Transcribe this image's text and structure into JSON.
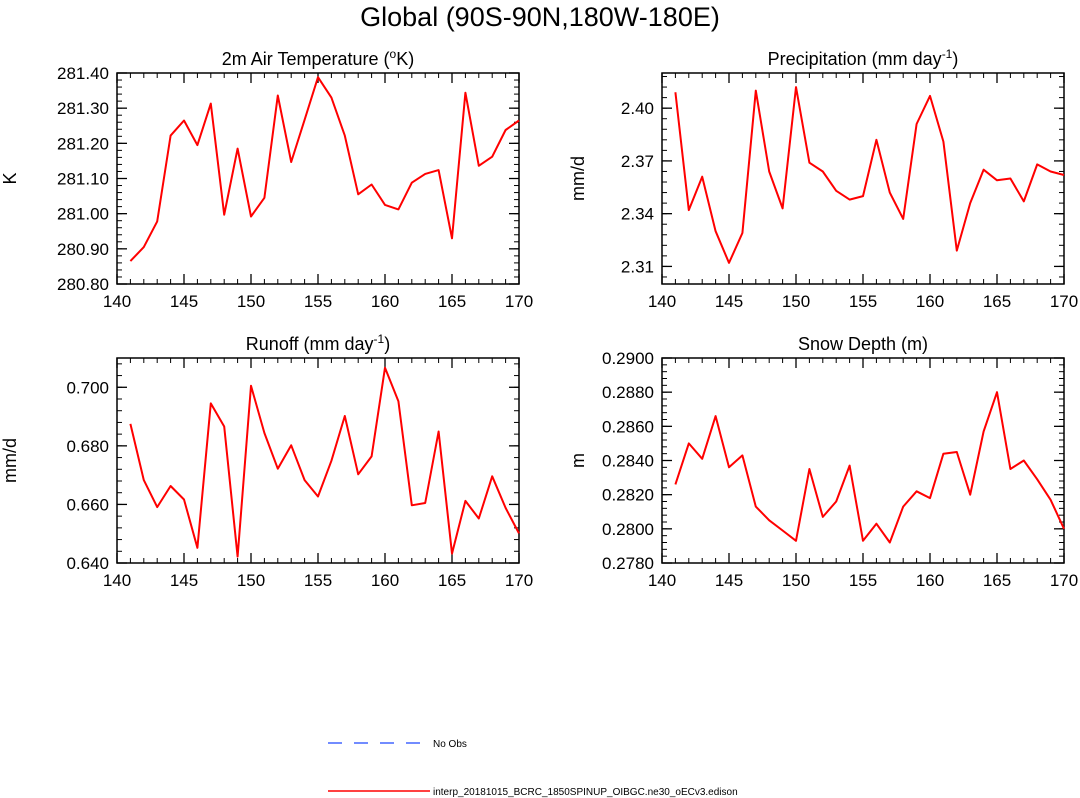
{
  "page": {
    "title": "Global (90S-90N,180W-180E)"
  },
  "legend": [
    {
      "label": "No Obs",
      "color": "#4466ff",
      "dashed": true
    },
    {
      "label": "interp_20181015_BCRC_1850SPINUP_OIBGC.ne30_oECv3.edison",
      "color": "#ff0000",
      "dashed": false
    }
  ],
  "chart_data": [
    {
      "type": "line",
      "title": "2m Air Temperature (",
      "title_sup": "o",
      "title_after": "K)",
      "xlabel": "",
      "ylabel": "K",
      "xlim": [
        140,
        170
      ],
      "ylim": [
        280.8,
        281.4
      ],
      "xticks": [
        140,
        145,
        150,
        155,
        160,
        165,
        170
      ],
      "yticks": [
        280.8,
        280.9,
        281.0,
        281.1,
        281.2,
        281.3,
        281.4
      ],
      "ytick_labels": [
        "280.80",
        "280.90",
        "281.00",
        "281.10",
        "281.20",
        "281.30",
        "281.40"
      ],
      "yminor": 0.02,
      "color": "#ff0000",
      "series": [
        {
          "name": "interp_20181015_BCRC_1850SPINUP_OIBGC.ne30_oECv3.edison",
          "x": [
            141,
            142,
            143,
            144,
            145,
            146,
            147,
            148,
            149,
            150,
            151,
            152,
            153,
            154,
            155,
            156,
            157,
            158,
            159,
            160,
            161,
            162,
            163,
            164,
            165,
            166,
            167,
            168,
            169,
            170
          ],
          "values": [
            280.865,
            280.905,
            280.978,
            281.222,
            281.265,
            281.195,
            281.313,
            280.997,
            281.185,
            280.992,
            281.045,
            281.336,
            281.147,
            281.267,
            281.388,
            281.33,
            281.222,
            281.055,
            281.083,
            281.025,
            281.012,
            281.088,
            281.113,
            281.124,
            280.93,
            281.344,
            281.136,
            281.162,
            281.238,
            281.265
          ]
        }
      ]
    },
    {
      "type": "line",
      "title": "Precipitation (mm day",
      "title_sup": "-1",
      "title_after": ")",
      "xlabel": "",
      "ylabel": "mm/d",
      "xlim": [
        140,
        170
      ],
      "ylim": [
        2.3,
        2.42
      ],
      "xticks": [
        140,
        145,
        150,
        155,
        160,
        165,
        170
      ],
      "yticks": [
        2.31,
        2.34,
        2.37,
        2.4
      ],
      "ytick_labels": [
        "2.31",
        "2.34",
        "2.37",
        "2.40"
      ],
      "yminor": 0.006,
      "color": "#ff0000",
      "series": [
        {
          "name": "interp_20181015_BCRC_1850SPINUP_OIBGC.ne30_oECv3.edison",
          "x": [
            141,
            142,
            143,
            144,
            145,
            146,
            147,
            148,
            149,
            150,
            151,
            152,
            153,
            154,
            155,
            156,
            157,
            158,
            159,
            160,
            161,
            162,
            163,
            164,
            165,
            166,
            167,
            168,
            169,
            170
          ],
          "values": [
            2.409,
            2.342,
            2.361,
            2.33,
            2.312,
            2.329,
            2.41,
            2.364,
            2.343,
            2.412,
            2.369,
            2.364,
            2.353,
            2.348,
            2.35,
            2.382,
            2.352,
            2.337,
            2.391,
            2.407,
            2.381,
            2.319,
            2.346,
            2.365,
            2.359,
            2.36,
            2.347,
            2.368,
            2.364,
            2.362
          ]
        }
      ]
    },
    {
      "type": "line",
      "title": "Runoff (mm day",
      "title_sup": "-1",
      "title_after": ")",
      "xlabel": "",
      "ylabel": "mm/d",
      "xlim": [
        140,
        170
      ],
      "ylim": [
        0.64,
        0.71
      ],
      "xticks": [
        140,
        145,
        150,
        155,
        160,
        165,
        170
      ],
      "yticks": [
        0.64,
        0.66,
        0.68,
        0.7
      ],
      "ytick_labels": [
        "0.640",
        "0.660",
        "0.680",
        "0.700"
      ],
      "yminor": 0.004,
      "color": "#ff0000",
      "series": [
        {
          "name": "interp_20181015_BCRC_1850SPINUP_OIBGC.ne30_oECv3.edison",
          "x": [
            141,
            142,
            143,
            144,
            145,
            146,
            147,
            148,
            149,
            150,
            151,
            152,
            153,
            154,
            155,
            156,
            157,
            158,
            159,
            160,
            161,
            162,
            163,
            164,
            165,
            166,
            167,
            168,
            169,
            170
          ],
          "values": [
            0.6875,
            0.6683,
            0.6591,
            0.6663,
            0.6617,
            0.6452,
            0.6945,
            0.6866,
            0.6422,
            0.7005,
            0.6844,
            0.6722,
            0.6802,
            0.6683,
            0.6627,
            0.6749,
            0.6902,
            0.6703,
            0.6764,
            0.7067,
            0.6952,
            0.6597,
            0.6605,
            0.6849,
            0.6432,
            0.6612,
            0.6552,
            0.6696,
            0.6588,
            0.6501
          ]
        }
      ]
    },
    {
      "type": "line",
      "title": "Snow Depth (m)",
      "title_sup": "",
      "title_after": "",
      "xlabel": "",
      "ylabel": "m",
      "xlim": [
        140,
        170
      ],
      "ylim": [
        0.278,
        0.29
      ],
      "xticks": [
        140,
        145,
        150,
        155,
        160,
        165,
        170
      ],
      "yticks": [
        0.278,
        0.28,
        0.282,
        0.284,
        0.286,
        0.288,
        0.29
      ],
      "ytick_labels": [
        "0.2780",
        "0.2800",
        "0.2820",
        "0.2840",
        "0.2860",
        "0.2880",
        "0.2900"
      ],
      "yminor": 0.0004,
      "color": "#ff0000",
      "series": [
        {
          "name": "interp_20181015_BCRC_1850SPINUP_OIBGC.ne30_oECv3.edison",
          "x": [
            141,
            142,
            143,
            144,
            145,
            146,
            147,
            148,
            149,
            150,
            151,
            152,
            153,
            154,
            155,
            156,
            157,
            158,
            159,
            160,
            161,
            162,
            163,
            164,
            165,
            166,
            167,
            168,
            169,
            170
          ],
          "values": [
            0.2826,
            0.285,
            0.2841,
            0.2866,
            0.2836,
            0.2843,
            0.2813,
            0.2805,
            0.2799,
            0.2793,
            0.2835,
            0.2807,
            0.2816,
            0.2837,
            0.2793,
            0.2803,
            0.2792,
            0.2813,
            0.2822,
            0.2818,
            0.2844,
            0.2845,
            0.282,
            0.2857,
            0.288,
            0.2835,
            0.284,
            0.2829,
            0.2817,
            0.28
          ]
        }
      ]
    }
  ]
}
